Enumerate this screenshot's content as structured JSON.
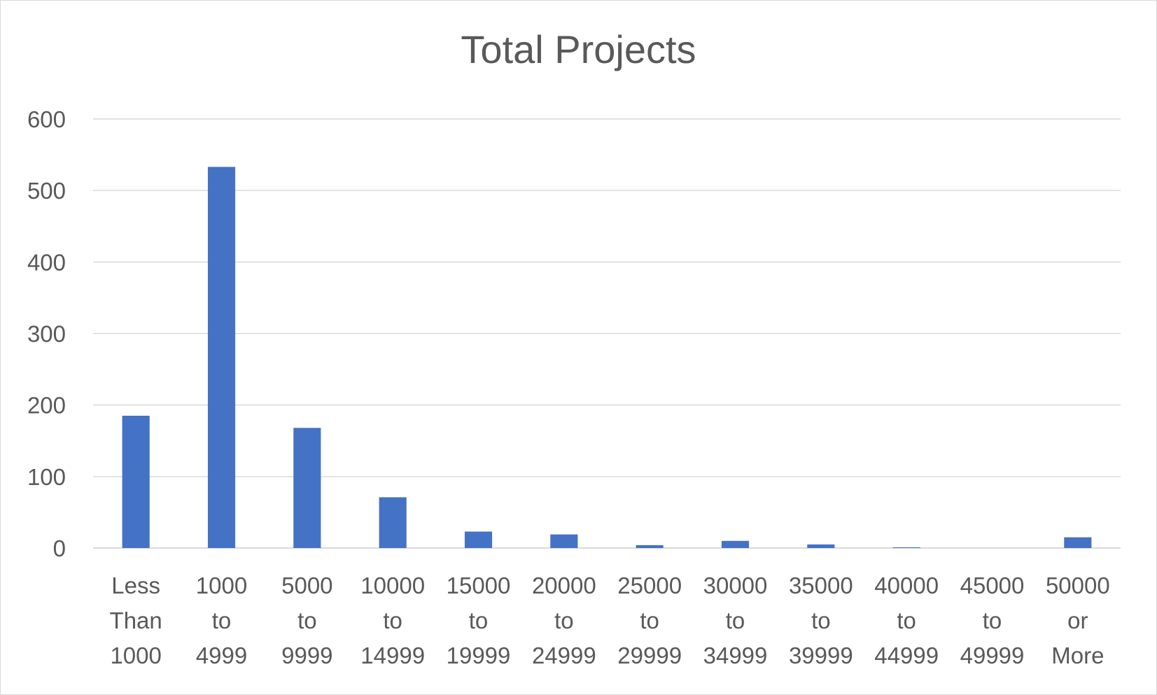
{
  "chart_data": {
    "type": "bar",
    "title": "Total Projects",
    "xlabel": "",
    "ylabel": "",
    "ylim": [
      0,
      600
    ],
    "yticks": [
      0,
      100,
      200,
      300,
      400,
      500,
      600
    ],
    "grid": true,
    "legend": "none",
    "bar_color": "#4472c4",
    "categories": [
      [
        "Less",
        "Than",
        "1000"
      ],
      [
        "1000",
        "to",
        "4999"
      ],
      [
        "5000",
        "to",
        "9999"
      ],
      [
        "10000",
        "to",
        "14999"
      ],
      [
        "15000",
        "to",
        "19999"
      ],
      [
        "20000",
        "to",
        "24999"
      ],
      [
        "25000",
        "to",
        "29999"
      ],
      [
        "30000",
        "to",
        "34999"
      ],
      [
        "35000",
        "to",
        "39999"
      ],
      [
        "40000",
        "to",
        "44999"
      ],
      [
        "45000",
        "to",
        "49999"
      ],
      [
        "50000",
        "or",
        "More"
      ]
    ],
    "values": [
      185,
      533,
      168,
      71,
      23,
      19,
      4,
      10,
      5,
      1,
      0,
      15
    ]
  }
}
